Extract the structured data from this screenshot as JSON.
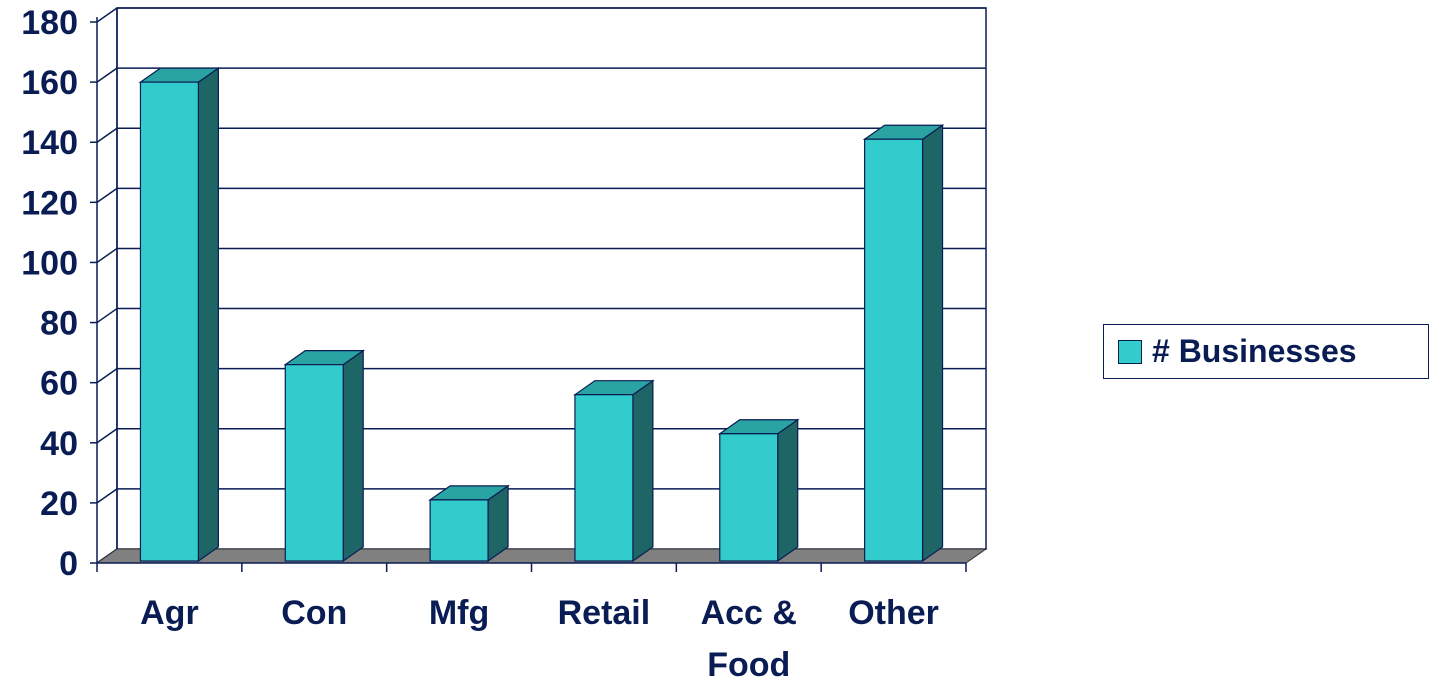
{
  "chart_data": {
    "type": "bar",
    "style": "3d",
    "categories": [
      "Agr",
      "Con",
      "Mfg",
      "Retail",
      "Acc & Food",
      "Other"
    ],
    "category_label_lines": [
      [
        "Agr"
      ],
      [
        "Con"
      ],
      [
        "Mfg"
      ],
      [
        "Retail"
      ],
      [
        "Acc &",
        "Food"
      ],
      [
        "Other"
      ]
    ],
    "series": [
      {
        "name": "# Businesses",
        "values": [
          160,
          66,
          21,
          56,
          43,
          141
        ]
      }
    ],
    "title": "",
    "xlabel": "",
    "ylabel": "",
    "ylim": [
      0,
      180
    ],
    "yticks": [
      "0",
      "20",
      "40",
      "60",
      "80",
      "100",
      "120",
      "140",
      "160",
      "180"
    ],
    "grid": true,
    "legend_position": "right"
  },
  "colors": {
    "bar_front": "#33cccc",
    "bar_top": "#2aa3a3",
    "bar_side": "#1e6666",
    "floor": "#808080",
    "gridline": "#0a1c54",
    "axis_text": "#0a1c54",
    "outline": "#0a1c54"
  },
  "legend": {
    "label": "# Businesses"
  }
}
